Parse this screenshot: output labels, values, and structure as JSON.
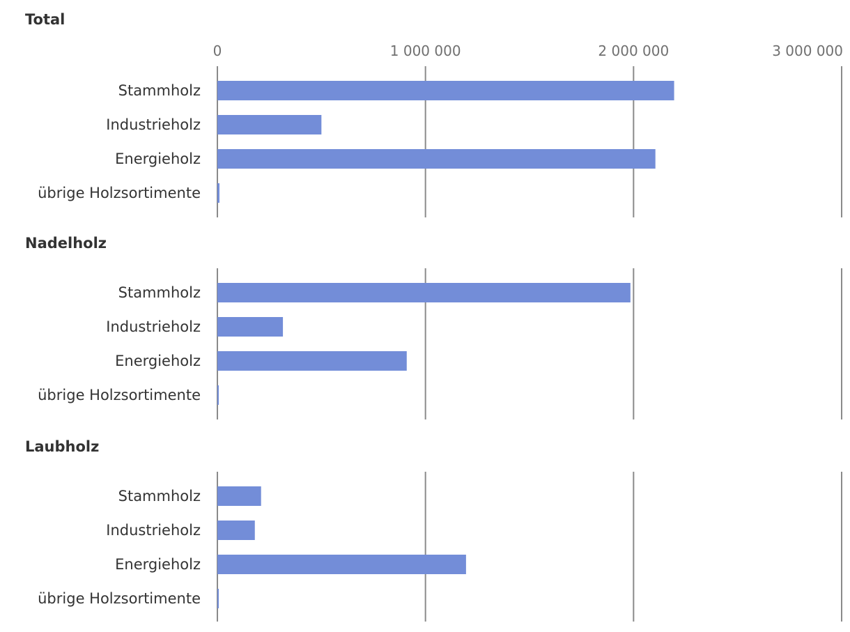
{
  "chart_data": {
    "type": "bar",
    "orientation": "horizontal",
    "xlim": [
      0,
      3000000
    ],
    "ticks": [
      0,
      1000000,
      2000000,
      3000000
    ],
    "tick_labels": [
      "0",
      "1 000 000",
      "2 000 000",
      "3 000 000"
    ],
    "grid": true,
    "bar_color": "#738dd8",
    "categories": [
      "Stammholz",
      "Industrieholz",
      "Energieholz",
      "übrige Holzsortimente"
    ],
    "panels": [
      {
        "title": "Total",
        "values": [
          2195000,
          500000,
          2105000,
          10000
        ]
      },
      {
        "title": "Nadelholz",
        "values": [
          1985000,
          315000,
          910000,
          5000
        ]
      },
      {
        "title": "Laubholz",
        "values": [
          210000,
          180000,
          1195000,
          5000
        ]
      }
    ]
  }
}
